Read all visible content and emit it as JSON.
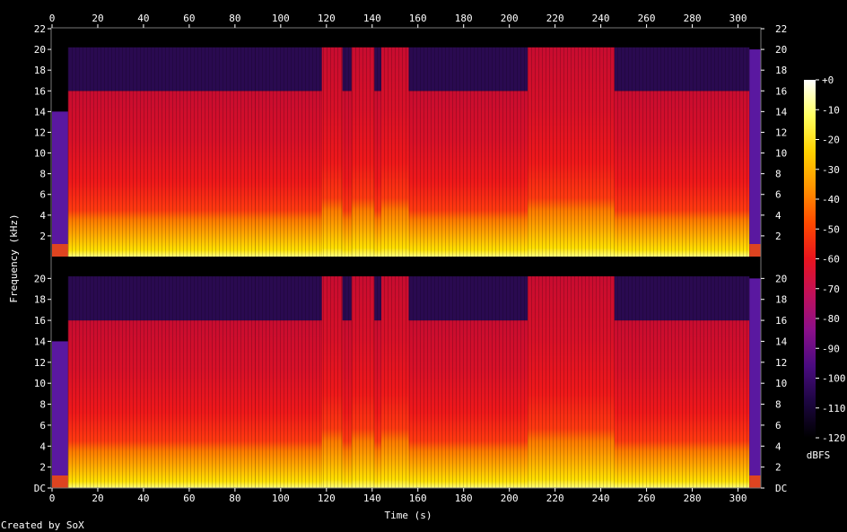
{
  "chart_data": {
    "type": "heatmap",
    "title": "",
    "xlabel": "Time (s)",
    "ylabel": "Frequency (kHz)",
    "xlim": [
      0,
      310
    ],
    "ylim": [
      0,
      22
    ],
    "x_ticks": [
      "0",
      "20",
      "40",
      "60",
      "80",
      "100",
      "120",
      "140",
      "160",
      "180",
      "200",
      "220",
      "240",
      "260",
      "280",
      "300"
    ],
    "y_ticks_top": [
      "2",
      "4",
      "6",
      "8",
      "10",
      "12",
      "14",
      "16",
      "18",
      "20",
      "22"
    ],
    "y_ticks_bottom": [
      "DC",
      "2",
      "4",
      "6",
      "8",
      "10",
      "12",
      "14",
      "16",
      "18",
      "20"
    ],
    "channels": 2,
    "colorbar": {
      "label": "dBFS",
      "range": [
        -120,
        0
      ],
      "ticks": [
        "+0",
        "-10",
        "-20",
        "-30",
        "-40",
        "-50",
        "-60",
        "-70",
        "-80",
        "-90",
        "-100",
        "-110",
        "-120"
      ],
      "colors": [
        "#000000",
        "#1c0640",
        "#4a0b80",
        "#8a0f8a",
        "#c0105a",
        "#e8141e",
        "#ff4a00",
        "#ff9400",
        "#ffd200",
        "#ffff60",
        "#ffffff"
      ]
    },
    "segments": [
      {
        "t": [
          0,
          7
        ],
        "cutoff_khz": 14,
        "level": "low"
      },
      {
        "t": [
          7,
          89
        ],
        "cutoff_khz": 16,
        "level": "high"
      },
      {
        "t": [
          89,
          118
        ],
        "cutoff_khz": 16,
        "level": "high"
      },
      {
        "t": [
          118,
          127
        ],
        "cutoff_khz": 20.2,
        "level": "high"
      },
      {
        "t": [
          127,
          131
        ],
        "cutoff_khz": 16,
        "level": "high"
      },
      {
        "t": [
          131,
          141
        ],
        "cutoff_khz": 20.2,
        "level": "high"
      },
      {
        "t": [
          141,
          144
        ],
        "cutoff_khz": 16,
        "level": "high"
      },
      {
        "t": [
          144,
          156
        ],
        "cutoff_khz": 20.2,
        "level": "high"
      },
      {
        "t": [
          156,
          208
        ],
        "cutoff_khz": 16,
        "level": "high"
      },
      {
        "t": [
          208,
          246
        ],
        "cutoff_khz": 20.2,
        "level": "high"
      },
      {
        "t": [
          246,
          305
        ],
        "cutoff_khz": 16,
        "level": "high"
      },
      {
        "t": [
          305,
          310
        ],
        "cutoff_khz": 20,
        "level": "low"
      }
    ]
  },
  "footer": {
    "credit": "Created by SoX"
  }
}
